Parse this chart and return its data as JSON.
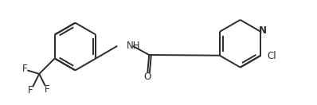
{
  "bg_color": "#ffffff",
  "line_color": "#2b2b2b",
  "lw": 1.4,
  "fs": 8.5,
  "figsize": [
    3.98,
    1.32
  ],
  "dpi": 100,
  "xlim": [
    0,
    10.5
  ],
  "ylim": [
    0,
    3.5
  ]
}
